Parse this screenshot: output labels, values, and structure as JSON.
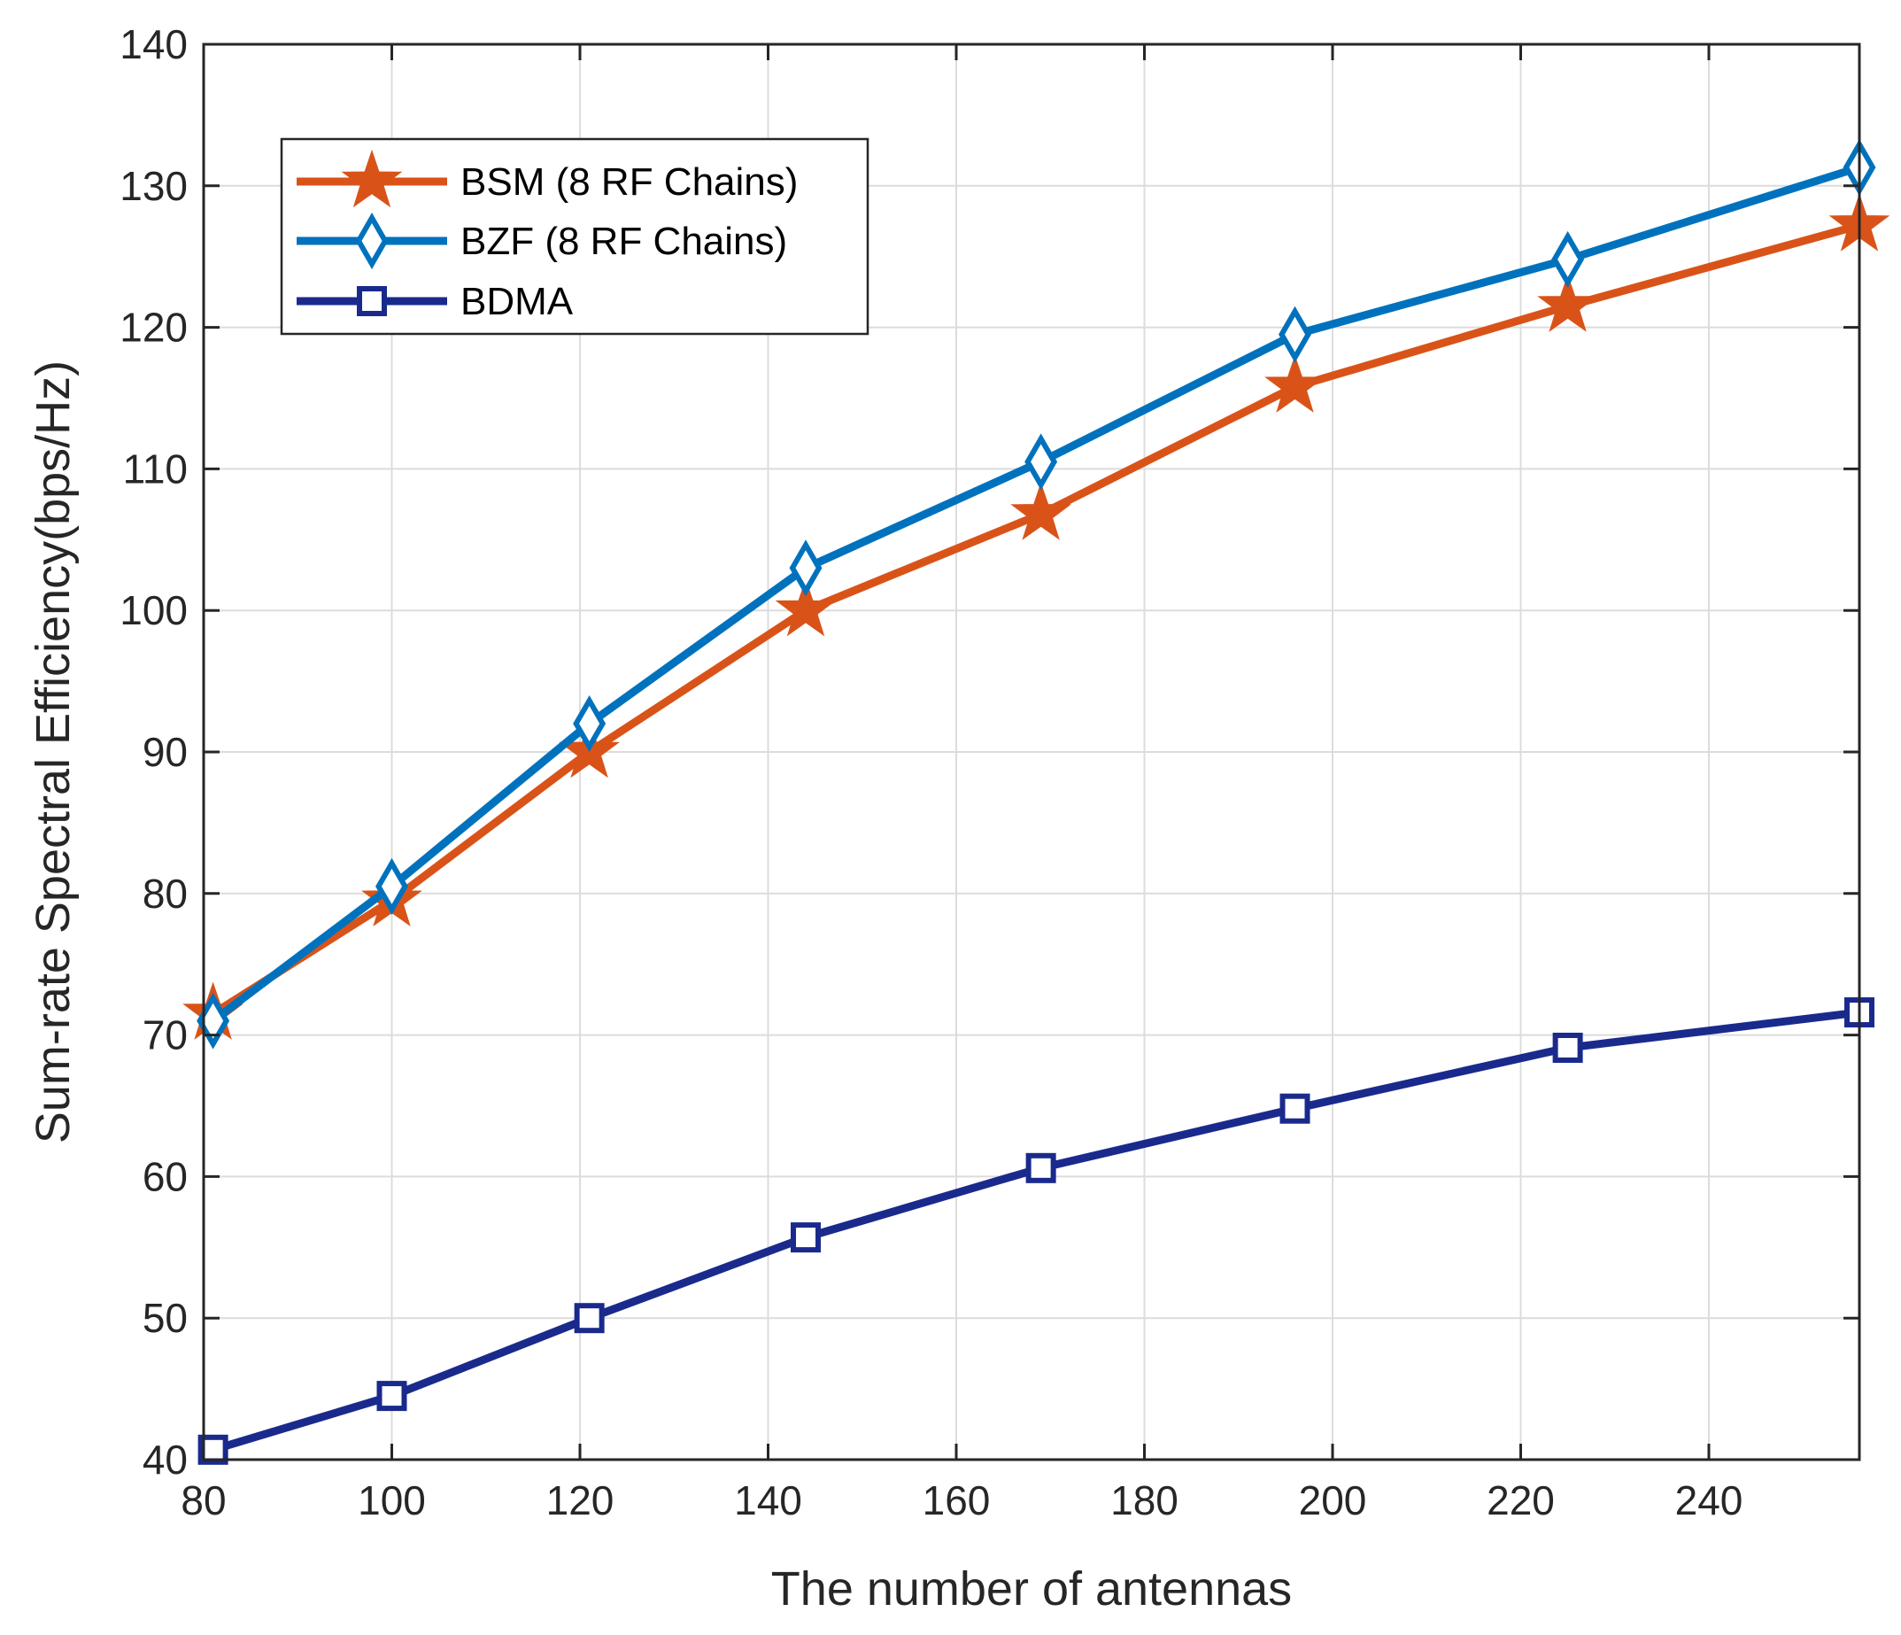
{
  "chart_data": {
    "type": "line",
    "title": "",
    "xlabel": "The number of antennas",
    "ylabel": "Sum-rate Spectral Efficiency(bps/Hz)",
    "xlim": [
      80,
      256
    ],
    "ylim": [
      40,
      140
    ],
    "xticks": [
      80,
      100,
      120,
      140,
      160,
      180,
      200,
      220,
      240
    ],
    "yticks": [
      40,
      50,
      60,
      70,
      80,
      90,
      100,
      110,
      120,
      130,
      140
    ],
    "grid": true,
    "legend_position": "top-left",
    "x": [
      81,
      100,
      121,
      144,
      169,
      196,
      225,
      256
    ],
    "series": [
      {
        "name": "BSM (8 RF Chains)",
        "marker": "star",
        "color": "#D95319",
        "values": [
          71.5,
          79.5,
          90.0,
          100.0,
          106.8,
          115.8,
          121.5,
          127.2
        ]
      },
      {
        "name": "BZF (8 RF Chains)",
        "marker": "diamond",
        "color": "#0072BD",
        "values": [
          71.0,
          80.5,
          92.0,
          103.0,
          110.5,
          119.5,
          124.8,
          131.3
        ]
      },
      {
        "name": "BDMA",
        "marker": "square",
        "color": "#1A2A8C",
        "values": [
          40.7,
          44.5,
          50.0,
          55.7,
          60.6,
          64.8,
          69.1,
          71.6
        ]
      }
    ]
  }
}
